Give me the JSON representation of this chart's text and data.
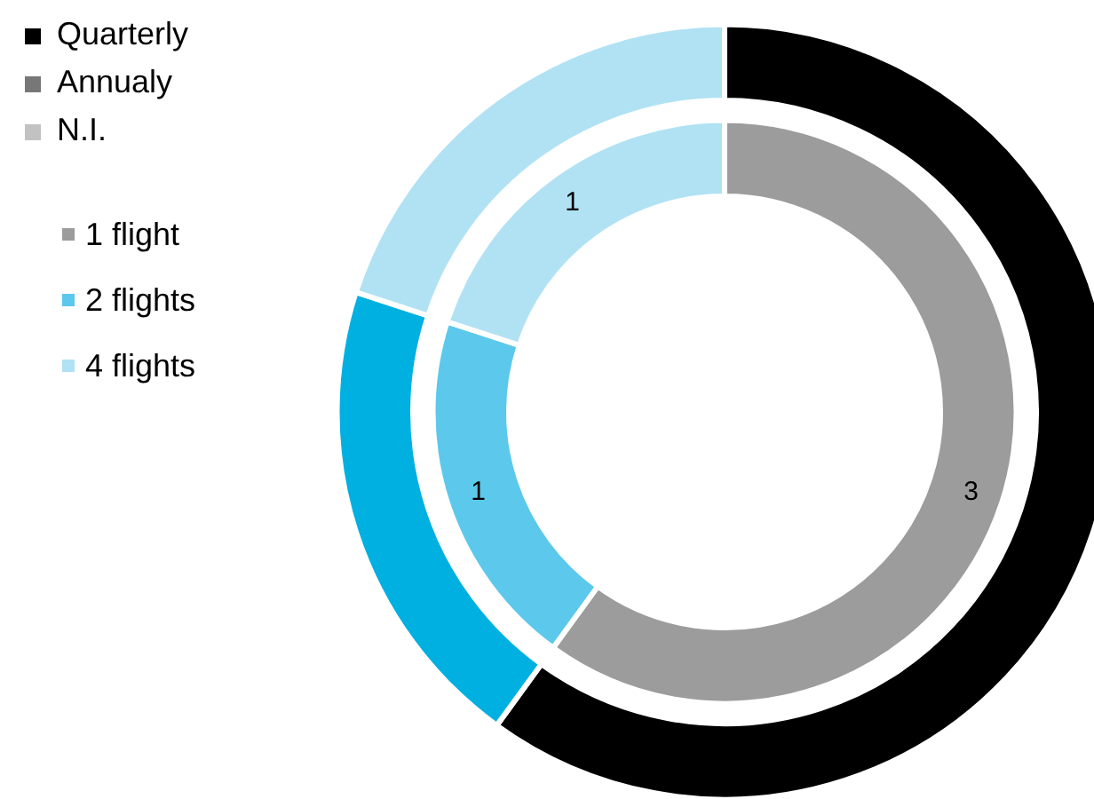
{
  "chart_data": {
    "type": "donut",
    "categories": [
      "1 flight",
      "2 flights",
      "4 flights"
    ],
    "series": [
      {
        "values": [
          3,
          1,
          1
        ],
        "colors": [
          "#9c9c9c",
          "#5cc8ec",
          "#b0e2f4"
        ],
        "value_labels": [
          "3",
          "1",
          "1"
        ]
      },
      {
        "values": [
          60,
          20,
          20
        ],
        "colors": [
          "#000000",
          "#00b0e0",
          "#b0e2f4"
        ]
      }
    ],
    "annotations": [
      "Quarterly",
      "Annualy",
      "N.I."
    ],
    "legend": "left"
  }
}
